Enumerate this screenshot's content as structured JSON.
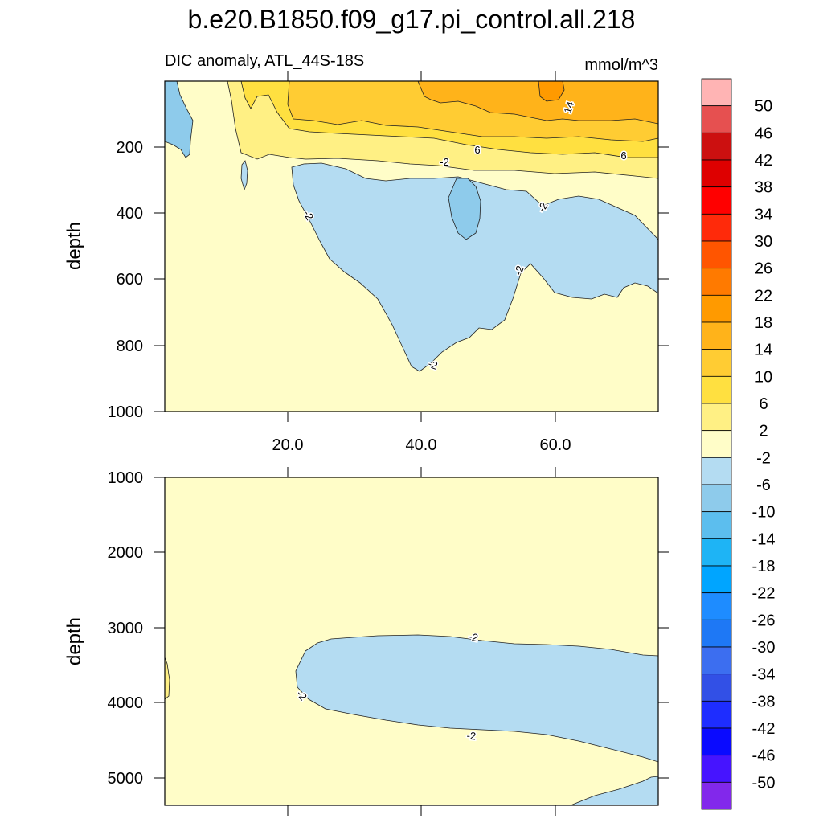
{
  "title": "b.e20.B1850.f09_g17.pi_control.all.218",
  "subtitle_left": "DIC anomaly, ATL_44S-18S",
  "subtitle_right": "mmol/m^3",
  "colors": {
    "ivory": "#fffdc8",
    "pale_yellow": "#fff084",
    "yellow": "#ffe040",
    "gold": "#ffcc33",
    "amber": "#ffb31a",
    "orange": "#ff9a00",
    "light_blue": "#b4dcf2",
    "mid_blue": "#8ecbeb",
    "contour": "#222222"
  },
  "chart_data": [
    {
      "type": "contour",
      "panel": "upper",
      "xlabel": "",
      "ylabel": "depth",
      "xlim": [
        1,
        76
      ],
      "ylim": [
        1000,
        0
      ],
      "x_ticks": [
        "20.0",
        "40.0",
        "60.0"
      ],
      "y_ticks": [
        "200",
        "400",
        "600",
        "800",
        "1000"
      ],
      "contour_labels": [
        "14",
        "6",
        "-2",
        "6",
        "-2",
        "-2",
        "-2",
        "-2"
      ],
      "regions": [
        {
          "level_range": [
            -10,
            -6
          ],
          "description": "surface near x 1-8, depth 0-230 and lens near x 44-48, depth 280-480"
        },
        {
          "level_range": [
            -6,
            -2
          ],
          "description": "large negative lobe x 20-76, depth 250-880"
        },
        {
          "level_range": [
            2,
            14
          ],
          "description": "positive surface layer, depth 0-240"
        },
        {
          "level_range": [
            14,
            18
          ],
          "description": "maximum near x 56-62, depth 0-60"
        }
      ]
    },
    {
      "type": "contour",
      "panel": "lower",
      "xlabel": "",
      "ylabel": "depth",
      "xlim": [
        1,
        76
      ],
      "ylim": [
        5400,
        1000
      ],
      "y_ticks": [
        "1000",
        "2000",
        "3000",
        "4000",
        "5000"
      ],
      "contour_labels": [
        "-2",
        "-2",
        "-2"
      ],
      "regions": [
        {
          "level_range": [
            -6,
            -2
          ],
          "description": "negative lens x 20-76, depth 3100-4800"
        },
        {
          "level_range": [
            2,
            6
          ],
          "description": "small positive patch at x 1, depth 3400-4000"
        }
      ]
    }
  ],
  "colorbar": {
    "labels": [
      "50",
      "46",
      "42",
      "38",
      "34",
      "30",
      "26",
      "22",
      "18",
      "14",
      "10",
      "6",
      "2",
      "-2",
      "-6",
      "-10",
      "-14",
      "-18",
      "-22",
      "-26",
      "-30",
      "-34",
      "-38",
      "-42",
      "-46",
      "-50"
    ],
    "colors": [
      "#ffb4b4",
      "#e65050",
      "#cc1010",
      "#de0000",
      "#ff0000",
      "#ff2a0a",
      "#ff5500",
      "#ff7a00",
      "#ff9a00",
      "#ffb31a",
      "#ffcc33",
      "#ffe040",
      "#fff084",
      "#fffdc8",
      "#b4dcf2",
      "#8ecbeb",
      "#5cbeee",
      "#1eb4f5",
      "#00a5ff",
      "#1e8cff",
      "#1e78f5",
      "#3c6ef0",
      "#3250e6",
      "#1e2dff",
      "#0a0aff",
      "#4614ff",
      "#8228eb"
    ]
  }
}
